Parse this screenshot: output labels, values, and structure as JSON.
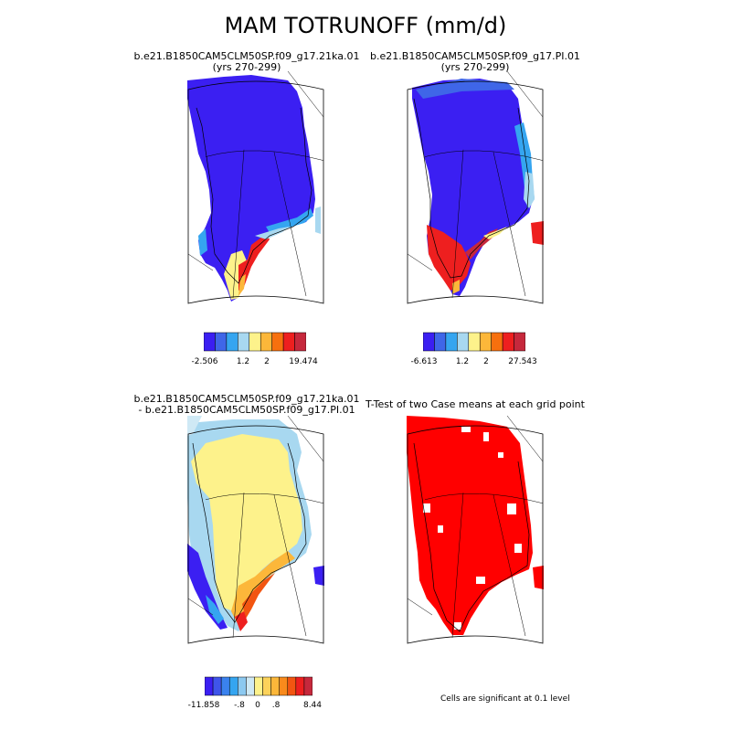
{
  "title": "MAM TOTRUNOFF (mm/d)",
  "panels": [
    {
      "id": "case1",
      "title_lines": [
        "b.e21.B1850CAM5CLM50SP.f09_g17.21ka.01",
        "(yrs 270-299)"
      ],
      "colorbar": {
        "colors": [
          "#3b1ff2",
          "#3f66e8",
          "#35a5f0",
          "#a8d8f0",
          "#fdf28b",
          "#fcb73a",
          "#f7700e",
          "#ee1f1f",
          "#c6283c"
        ],
        "labels": [
          "-2.506",
          "1.2",
          "2",
          "19.474"
        ]
      }
    },
    {
      "id": "case2",
      "title_lines": [
        "b.e21.B1850CAM5CLM50SP.f09_g17.PI.01",
        "(yrs 270-299)"
      ],
      "colorbar": {
        "colors": [
          "#3b1ff2",
          "#3f66e8",
          "#35a5f0",
          "#a8d8f0",
          "#fdf28b",
          "#fcb73a",
          "#f7700e",
          "#ee1f1f",
          "#c6283c"
        ],
        "labels": [
          "-6.613",
          "1.2",
          "2",
          "27.543"
        ]
      }
    },
    {
      "id": "diff",
      "title_lines": [
        "b.e21.B1850CAM5CLM50SP.f09_g17.21ka.01",
        "- b.e21.B1850CAM5CLM50SP.f09_g17.PI.01"
      ],
      "colorbar": {
        "colors": [
          "#3b1ff2",
          "#3f55ea",
          "#3a82ee",
          "#35a5f0",
          "#8cc9f0",
          "#cfe9f5",
          "#fdf28b",
          "#fcd25a",
          "#fcb73a",
          "#f98a1c",
          "#f25511",
          "#ee1f1f",
          "#c6283c"
        ],
        "labels": [
          "-11.858",
          "-.8",
          "0",
          ".8",
          "8.44"
        ]
      }
    },
    {
      "id": "ttest",
      "title_lines": [
        "T-Test of two Case means at each grid point"
      ],
      "note": "Cells are significant at 0.1 level"
    }
  ]
}
